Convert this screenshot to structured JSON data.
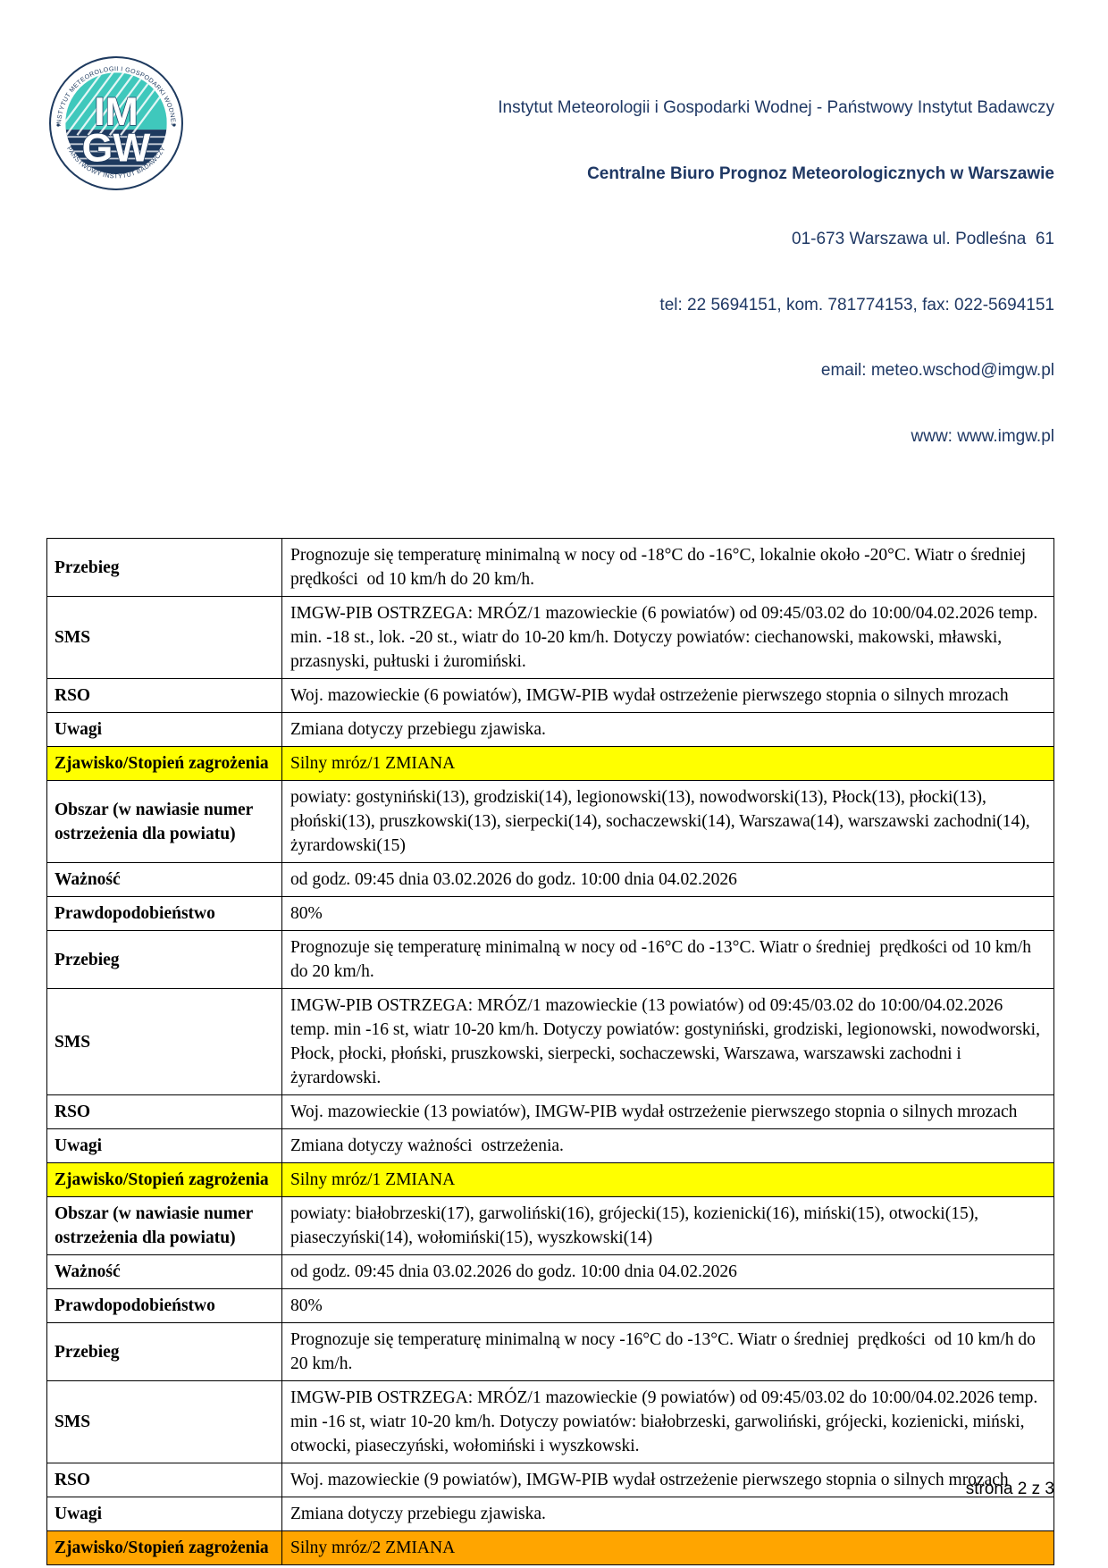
{
  "colors": {
    "header_text": "#1F3864",
    "highlight_yellow": "#FFFF00",
    "highlight_orange": "#FFA500",
    "logo_teal": "#3FC8BC",
    "logo_navy": "#1E3A5F"
  },
  "header": {
    "institute_line": "Instytut Meteorologii i Gospodarki Wodnej - Państwowy Instytut Badawczy",
    "bureau_line": "Centralne Biuro Prognoz Meteorologicznych w Warszawie",
    "address_line": "01-673 Warszawa ul. Podleśna  61",
    "phone_line": "tel: 22 5694151, kom. 781774153, fax: 022-5694151",
    "email_line": "email: meteo.wschod@imgw.pl",
    "www_line": "www: www.imgw.pl",
    "logo": {
      "ring_text_top": "INSTYTUT METEOROLOGII I GOSPODARKI WODNEJ",
      "ring_text_bottom": "PAŃSTWOWY INSTYTUT BADAWCZY",
      "monogram_top": "IM",
      "monogram_bottom": "GW"
    }
  },
  "table": {
    "rows": [
      {
        "label": "Przebieg",
        "value": "Prognozuje się temperaturę minimalną w nocy od -18°C do -16°C, lokalnie około -20°C. Wiatr o średniej  prędkości  od 10 km/h do 20 km/h.",
        "highlight": null
      },
      {
        "label": "SMS",
        "value": "IMGW-PIB OSTRZEGA: MRÓZ/1 mazowieckie (6 powiatów) od 09:45/03.02 do 10:00/04.02.2026 temp. min. -18 st., lok. -20 st., wiatr do 10-20 km/h. Dotyczy powiatów: ciechanowski, makowski, mławski, przasnyski, pułtuski i żuromiński.",
        "highlight": null
      },
      {
        "label": "RSO",
        "value": "Woj. mazowieckie (6 powiatów), IMGW-PIB wydał ostrzeżenie pierwszego stopnia o silnych mrozach",
        "highlight": null
      },
      {
        "label": "Uwagi",
        "value": "Zmiana dotyczy przebiegu zjawiska.",
        "highlight": null
      },
      {
        "label": "Zjawisko/Stopień zagrożenia",
        "value": "Silny mróz/1 ZMIANA",
        "highlight": "yellow"
      },
      {
        "label": "Obszar (w nawiasie numer ostrzeżenia dla powiatu)",
        "value": "powiaty: gostyniński(13), grodziski(14), legionowski(13), nowodworski(13), Płock(13), płocki(13), płoński(13), pruszkowski(13), sierpecki(14), sochaczewski(14), Warszawa(14), warszawski zachodni(14), żyrardowski(15)",
        "highlight": null
      },
      {
        "label": "Ważność",
        "value": "od godz. 09:45 dnia 03.02.2026 do godz. 10:00 dnia 04.02.2026",
        "highlight": null
      },
      {
        "label": "Prawdopodobieństwo",
        "value": "80%",
        "highlight": null
      },
      {
        "label": "Przebieg",
        "value": "Prognozuje się temperaturę minimalną w nocy od -16°C do -13°C. Wiatr o średniej  prędkości od 10 km/h do 20 km/h.",
        "highlight": null
      },
      {
        "label": "SMS",
        "value": "IMGW-PIB OSTRZEGA: MRÓZ/1 mazowieckie (13 powiatów) od 09:45/03.02 do 10:00/04.02.2026 temp. min -16 st, wiatr 10-20 km/h. Dotyczy powiatów: gostyniński, grodziski, legionowski, nowodworski, Płock, płocki, płoński, pruszkowski, sierpecki, sochaczewski, Warszawa, warszawski zachodni i żyrardowski.",
        "highlight": null
      },
      {
        "label": "RSO",
        "value": "Woj. mazowieckie (13 powiatów), IMGW-PIB wydał ostrzeżenie pierwszego stopnia o silnych mrozach",
        "highlight": null
      },
      {
        "label": "Uwagi",
        "value": "Zmiana dotyczy ważności  ostrzeżenia.",
        "highlight": null
      },
      {
        "label": "Zjawisko/Stopień zagrożenia",
        "value": "Silny mróz/1 ZMIANA",
        "highlight": "yellow"
      },
      {
        "label": "Obszar (w nawiasie numer ostrzeżenia dla powiatu)",
        "value": "powiaty: białobrzeski(17), garwoliński(16), grójecki(15), kozienicki(16), miński(15), otwocki(15), piaseczyński(14), wołomiński(15), wyszkowski(14)",
        "highlight": null
      },
      {
        "label": "Ważność",
        "value": "od godz. 09:45 dnia 03.02.2026 do godz. 10:00 dnia 04.02.2026",
        "highlight": null
      },
      {
        "label": "Prawdopodobieństwo",
        "value": "80%",
        "highlight": null
      },
      {
        "label": "Przebieg",
        "value": "Prognozuje się temperaturę minimalną w nocy -16°C do -13°C. Wiatr o średniej  prędkości  od 10 km/h do  20 km/h.",
        "highlight": null
      },
      {
        "label": "SMS",
        "value": "IMGW-PIB OSTRZEGA: MRÓZ/1 mazowieckie (9 powiatów) od 09:45/03.02 do 10:00/04.02.2026 temp. min -16 st, wiatr 10-20 km/h. Dotyczy powiatów: białobrzeski, garwoliński, grójecki, kozienicki, miński, otwocki, piaseczyński, wołomiński i wyszkowski.",
        "highlight": null
      },
      {
        "label": "RSO",
        "value": "Woj. mazowieckie (9 powiatów), IMGW-PIB wydał ostrzeżenie pierwszego stopnia o silnych mrozach",
        "highlight": null
      },
      {
        "label": "Uwagi",
        "value": "Zmiana dotyczy przebiegu zjawiska.",
        "highlight": null
      },
      {
        "label": "Zjawisko/Stopień zagrożenia",
        "value": "Silny mróz/2 ZMIANA",
        "highlight": "orange"
      }
    ]
  },
  "footer": {
    "page_label": "strona 2 z 3"
  }
}
